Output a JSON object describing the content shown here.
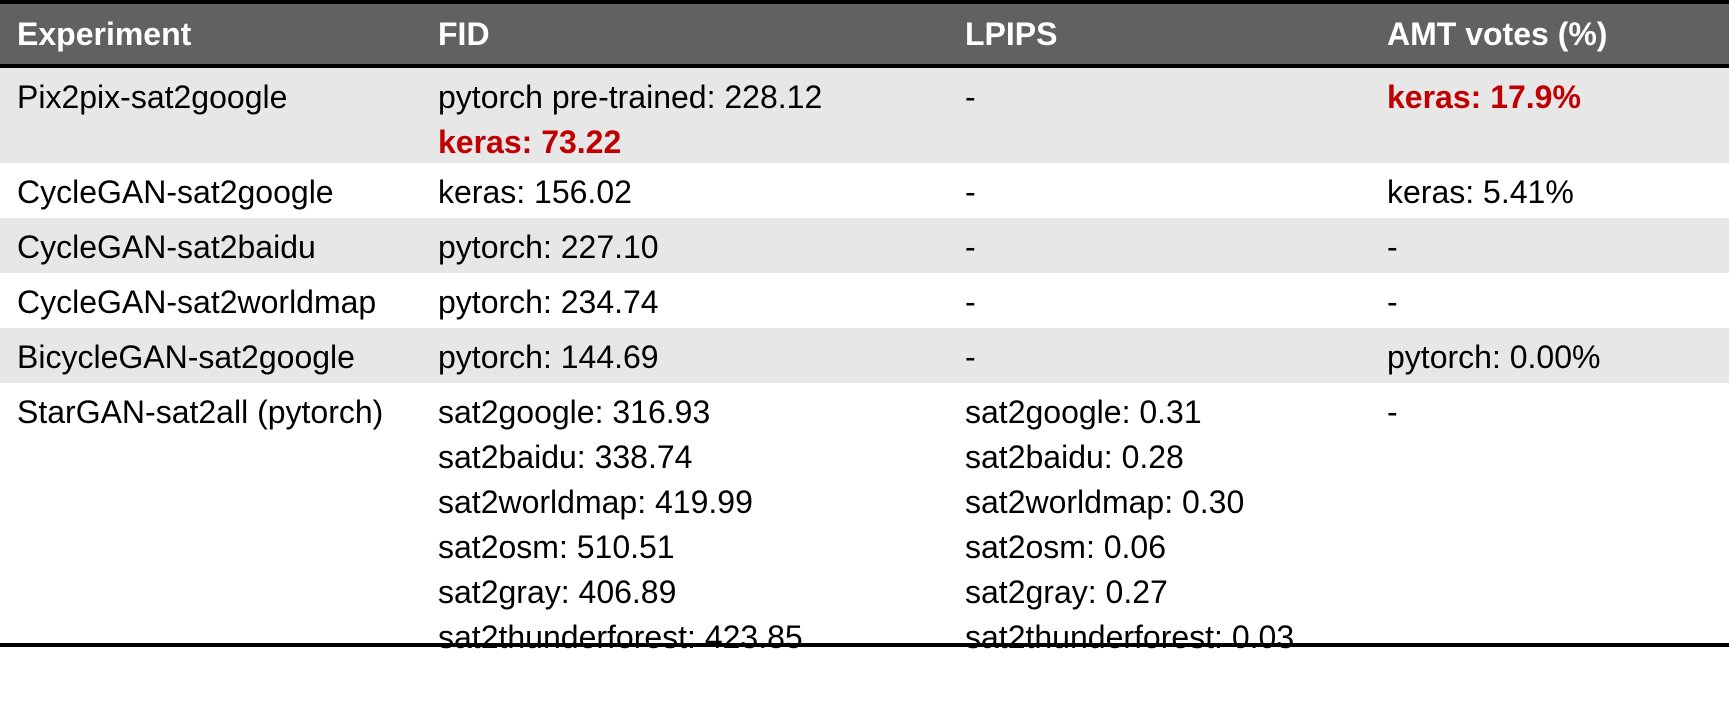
{
  "headers": [
    "Experiment",
    "FID",
    "LPIPS",
    "AMT votes (%)"
  ],
  "rows": [
    {
      "experiment": "Pix2pix-sat2google",
      "fid": [
        "pytorch pre-trained: 228.12",
        "keras: 73.22"
      ],
      "lpips": [
        "-"
      ],
      "amt": [
        "keras: 17.9%"
      ]
    },
    {
      "experiment": "CycleGAN-sat2google",
      "fid": [
        "keras: 156.02"
      ],
      "lpips": [
        "-"
      ],
      "amt": [
        "keras: 5.41%"
      ]
    },
    {
      "experiment": "CycleGAN-sat2baidu",
      "fid": [
        "pytorch: 227.10"
      ],
      "lpips": [
        "-"
      ],
      "amt": [
        "-"
      ]
    },
    {
      "experiment": "CycleGAN-sat2worldmap",
      "fid": [
        "pytorch: 234.74"
      ],
      "lpips": [
        "-"
      ],
      "amt": [
        "-"
      ]
    },
    {
      "experiment": "BicycleGAN-sat2google",
      "fid": [
        "pytorch: 144.69"
      ],
      "lpips": [
        "-"
      ],
      "amt": [
        "pytorch: 0.00%"
      ]
    },
    {
      "experiment": "StarGAN-sat2all (pytorch)",
      "fid": [
        "sat2google: 316.93",
        "sat2baidu: 338.74",
        "sat2worldmap: 419.99",
        "sat2osm: 510.51",
        "sat2gray: 406.89",
        "sat2thunderforest: 423.85"
      ],
      "lpips": [
        "sat2google: 0.31",
        "sat2baidu: 0.28",
        "sat2worldmap: 0.30",
        "sat2osm: 0.06",
        "sat2gray: 0.27",
        "sat2thunderforest: 0.03"
      ],
      "amt": [
        "-"
      ]
    }
  ],
  "colors": {
    "header_bg": "#616161",
    "header_text": "#ffffff",
    "shaded_row": "#e7e7e7",
    "highlight": "#c00000"
  }
}
